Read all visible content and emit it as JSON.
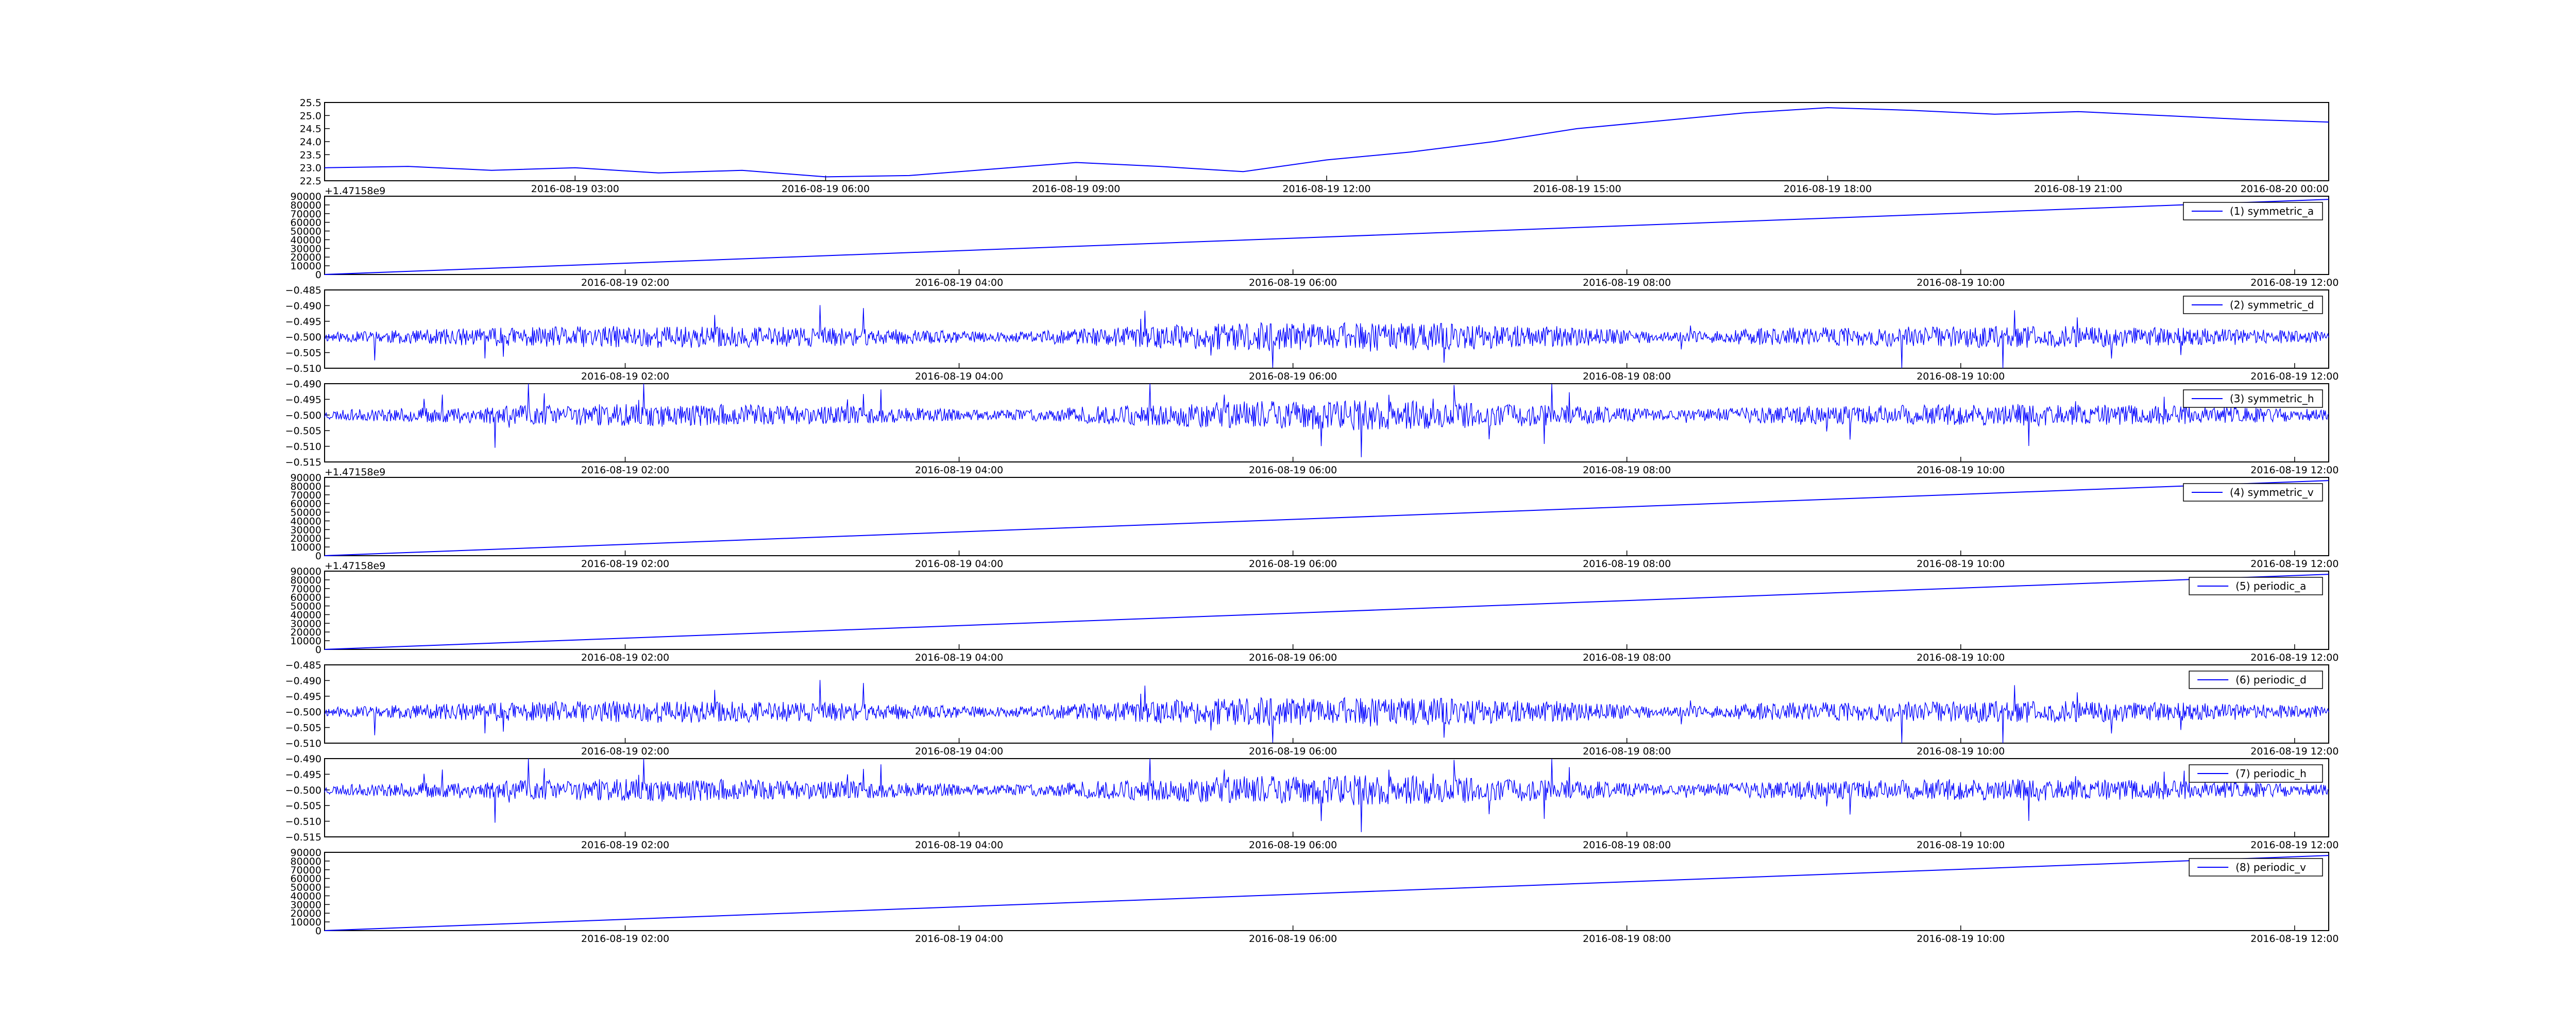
{
  "figure": {
    "line_color": "#0000ff",
    "axes_color": "#000000",
    "background": "#ffffff"
  },
  "chart_data": [
    {
      "type": "line",
      "title": "",
      "xlabel": "",
      "ylabel": "",
      "legend": null,
      "grid": false,
      "ylim": [
        22.5,
        25.5
      ],
      "yticks": [
        "22.5",
        "23.0",
        "23.5",
        "24.0",
        "24.5",
        "25.0",
        "25.5"
      ],
      "xlim": [
        "2016-08-19 00:00",
        "2016-08-20 00:00"
      ],
      "xticks": [
        "2016-08-19 03:00",
        "2016-08-19 06:00",
        "2016-08-19 09:00",
        "2016-08-19 12:00",
        "2016-08-19 15:00",
        "2016-08-19 18:00",
        "2016-08-19 21:00",
        "2016-08-20 00:00"
      ],
      "offset_label": "",
      "series": [
        {
          "x": [
            "2016-08-19 00:00",
            "2016-08-19 01:00",
            "2016-08-19 02:00",
            "2016-08-19 03:00",
            "2016-08-19 04:00",
            "2016-08-19 05:00",
            "2016-08-19 06:00",
            "2016-08-19 07:00",
            "2016-08-19 08:00",
            "2016-08-19 09:00",
            "2016-08-19 10:00",
            "2016-08-19 11:00",
            "2016-08-19 12:00",
            "2016-08-19 13:00",
            "2016-08-19 14:00",
            "2016-08-19 15:00",
            "2016-08-19 16:00",
            "2016-08-19 17:00",
            "2016-08-19 18:00",
            "2016-08-19 19:00",
            "2016-08-19 20:00",
            "2016-08-19 21:00",
            "2016-08-19 22:00",
            "2016-08-19 23:00",
            "2016-08-20 00:00"
          ],
          "values": [
            23.0,
            23.05,
            22.9,
            23.0,
            22.8,
            22.9,
            22.65,
            22.7,
            22.95,
            23.2,
            23.05,
            22.85,
            23.3,
            23.6,
            24.0,
            24.5,
            24.8,
            25.1,
            25.3,
            25.2,
            25.05,
            25.15,
            25.0,
            24.85,
            24.75
          ]
        }
      ]
    },
    {
      "type": "line",
      "title": "",
      "legend": {
        "entries": [
          "(1) symmetric_a"
        ],
        "position": "upper right"
      },
      "ylim": [
        0,
        90000
      ],
      "yticks": [
        "0",
        "10000",
        "20000",
        "30000",
        "40000",
        "50000",
        "60000",
        "70000",
        "80000",
        "90000"
      ],
      "xlim": [
        0,
        1
      ],
      "xticks": [
        "2016-08-19 02:00",
        "2016-08-19 04:00",
        "2016-08-19 06:00",
        "2016-08-19 08:00",
        "2016-08-19 10:00",
        "2016-08-19 12:00"
      ],
      "offset_label": "+1.47158e9",
      "series": [
        {
          "name": "(1) symmetric_a",
          "x": [
            0,
            1
          ],
          "values": [
            0,
            86400
          ]
        }
      ]
    },
    {
      "type": "line",
      "title": "",
      "legend": {
        "entries": [
          "(2) symmetric_d"
        ],
        "position": "upper right"
      },
      "ylim": [
        -0.51,
        -0.485
      ],
      "yticks": [
        "−0.510",
        "−0.505",
        "−0.500",
        "−0.495",
        "−0.490",
        "−0.485"
      ],
      "xlim": [
        0,
        1
      ],
      "xticks": [
        "2016-08-19 02:00",
        "2016-08-19 04:00",
        "2016-08-19 06:00",
        "2016-08-19 08:00",
        "2016-08-19 10:00",
        "2016-08-19 12:00"
      ],
      "offset_label": "",
      "series": [
        {
          "name": "(2) symmetric_d",
          "baseline": -0.5,
          "noise": {
            "seed": 11,
            "amp": 0.0025,
            "spike": 0.012
          }
        }
      ]
    },
    {
      "type": "line",
      "title": "",
      "legend": {
        "entries": [
          "(3) symmetric_h"
        ],
        "position": "upper right"
      },
      "ylim": [
        -0.515,
        -0.49
      ],
      "yticks": [
        "−0.515",
        "−0.510",
        "−0.505",
        "−0.500",
        "−0.495",
        "−0.490"
      ],
      "xlim": [
        0,
        1
      ],
      "xticks": [
        "2016-08-19 02:00",
        "2016-08-19 04:00",
        "2016-08-19 06:00",
        "2016-08-19 08:00",
        "2016-08-19 10:00",
        "2016-08-19 12:00"
      ],
      "offset_label": "",
      "series": [
        {
          "name": "(3) symmetric_h",
          "baseline": -0.5,
          "noise": {
            "seed": 23,
            "amp": 0.0025,
            "spike": 0.012
          }
        }
      ]
    },
    {
      "type": "line",
      "title": "",
      "legend": {
        "entries": [
          "(4) symmetric_v"
        ],
        "position": "upper right"
      },
      "ylim": [
        0,
        90000
      ],
      "yticks": [
        "0",
        "10000",
        "20000",
        "30000",
        "40000",
        "50000",
        "60000",
        "70000",
        "80000",
        "90000"
      ],
      "xlim": [
        0,
        1
      ],
      "xticks": [
        "2016-08-19 02:00",
        "2016-08-19 04:00",
        "2016-08-19 06:00",
        "2016-08-19 08:00",
        "2016-08-19 10:00",
        "2016-08-19 12:00"
      ],
      "offset_label": "+1.47158e9",
      "series": [
        {
          "name": "(4) symmetric_v",
          "x": [
            0,
            1
          ],
          "values": [
            0,
            86400
          ]
        }
      ]
    },
    {
      "type": "line",
      "title": "",
      "legend": {
        "entries": [
          "(5) periodic_a"
        ],
        "position": "upper right"
      },
      "ylim": [
        0,
        90000
      ],
      "yticks": [
        "0",
        "10000",
        "20000",
        "30000",
        "40000",
        "50000",
        "60000",
        "70000",
        "80000",
        "90000"
      ],
      "xlim": [
        0,
        1
      ],
      "xticks": [
        "2016-08-19 02:00",
        "2016-08-19 04:00",
        "2016-08-19 06:00",
        "2016-08-19 08:00",
        "2016-08-19 10:00",
        "2016-08-19 12:00"
      ],
      "offset_label": "+1.47158e9",
      "series": [
        {
          "name": "(5) periodic_a",
          "x": [
            0,
            1
          ],
          "values": [
            0,
            86400
          ]
        }
      ]
    },
    {
      "type": "line",
      "title": "",
      "legend": {
        "entries": [
          "(6) periodic_d"
        ],
        "position": "upper right"
      },
      "ylim": [
        -0.51,
        -0.485
      ],
      "yticks": [
        "−0.510",
        "−0.505",
        "−0.500",
        "−0.495",
        "−0.490",
        "−0.485"
      ],
      "xlim": [
        0,
        1
      ],
      "xticks": [
        "2016-08-19 02:00",
        "2016-08-19 04:00",
        "2016-08-19 06:00",
        "2016-08-19 08:00",
        "2016-08-19 10:00",
        "2016-08-19 12:00"
      ],
      "offset_label": "",
      "series": [
        {
          "name": "(6) periodic_d",
          "baseline": -0.5,
          "noise": {
            "seed": 11,
            "amp": 0.0025,
            "spike": 0.012
          }
        }
      ]
    },
    {
      "type": "line",
      "title": "",
      "legend": {
        "entries": [
          "(7) periodic_h"
        ],
        "position": "upper right"
      },
      "ylim": [
        -0.515,
        -0.49
      ],
      "yticks": [
        "−0.515",
        "−0.510",
        "−0.505",
        "−0.500",
        "−0.495",
        "−0.490"
      ],
      "xlim": [
        0,
        1
      ],
      "xticks": [
        "2016-08-19 02:00",
        "2016-08-19 04:00",
        "2016-08-19 06:00",
        "2016-08-19 08:00",
        "2016-08-19 10:00",
        "2016-08-19 12:00"
      ],
      "offset_label": "",
      "series": [
        {
          "name": "(7) periodic_h",
          "baseline": -0.5,
          "noise": {
            "seed": 23,
            "amp": 0.0025,
            "spike": 0.012
          }
        }
      ]
    },
    {
      "type": "line",
      "title": "",
      "legend": {
        "entries": [
          "(8) periodic_v"
        ],
        "position": "upper right"
      },
      "ylim": [
        0,
        90000
      ],
      "yticks": [
        "0",
        "10000",
        "20000",
        "30000",
        "40000",
        "50000",
        "60000",
        "70000",
        "80000",
        "90000"
      ],
      "xlim": [
        0,
        1
      ],
      "xticks": [
        "2016-08-19 02:00",
        "2016-08-19 04:00",
        "2016-08-19 06:00",
        "2016-08-19 08:00",
        "2016-08-19 10:00",
        "2016-08-19 12:00"
      ],
      "offset_label": "",
      "series": [
        {
          "name": "(8) periodic_v",
          "x": [
            0,
            1
          ],
          "values": [
            0,
            86400
          ]
        }
      ]
    }
  ]
}
